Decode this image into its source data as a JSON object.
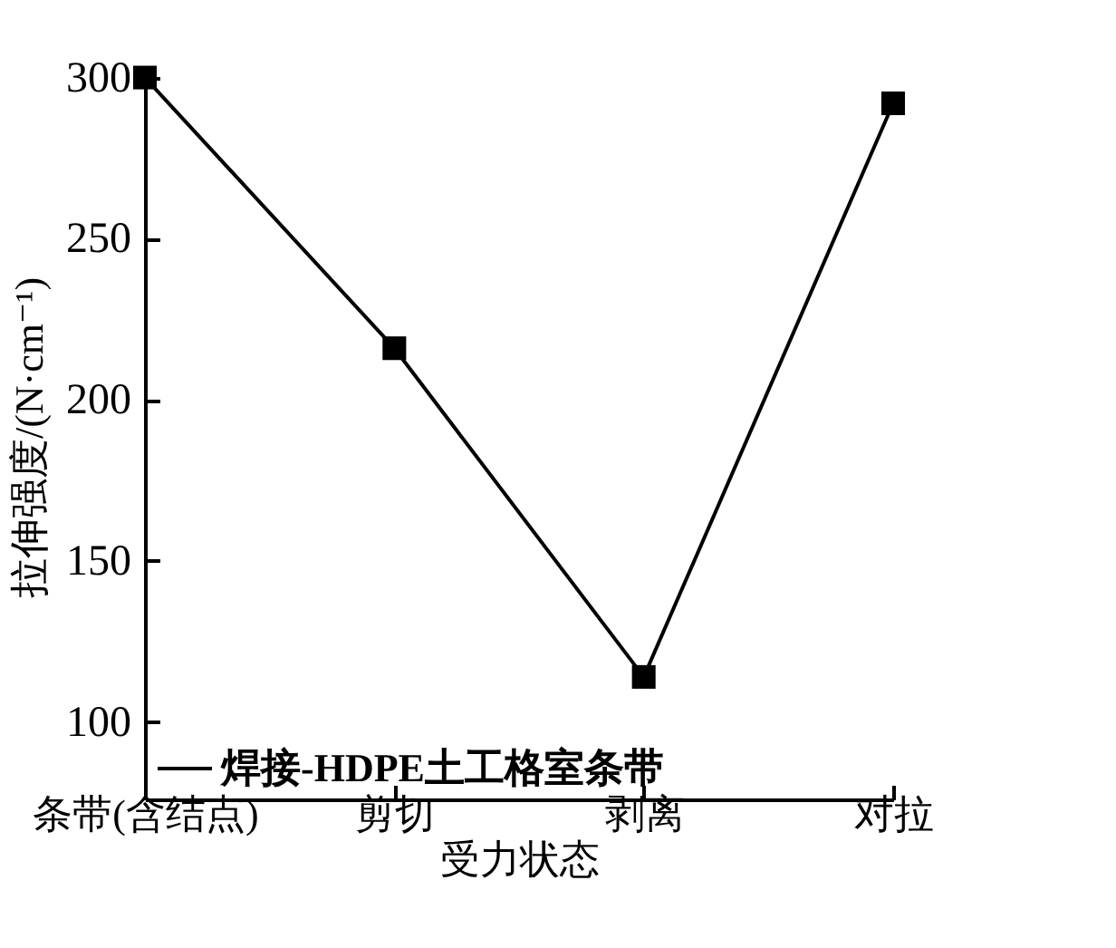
{
  "chart_data": {
    "type": "line",
    "xlabel": "受力状态",
    "ylabel": "拉伸强度/(N·cm⁻¹)",
    "categories": [
      "条带(含结点)",
      "剪切",
      "剥离",
      "对拉"
    ],
    "series": [
      {
        "name": "焊接-HDPE土工格室条带",
        "color": "#000000",
        "values": [
          300,
          216,
          114,
          292
        ]
      }
    ],
    "ylim": [
      76,
      301
    ],
    "yticks": [
      100,
      150,
      200,
      250,
      300
    ],
    "grid": false,
    "legend": "bottom left",
    "marker": "square",
    "line_style": "solid"
  }
}
